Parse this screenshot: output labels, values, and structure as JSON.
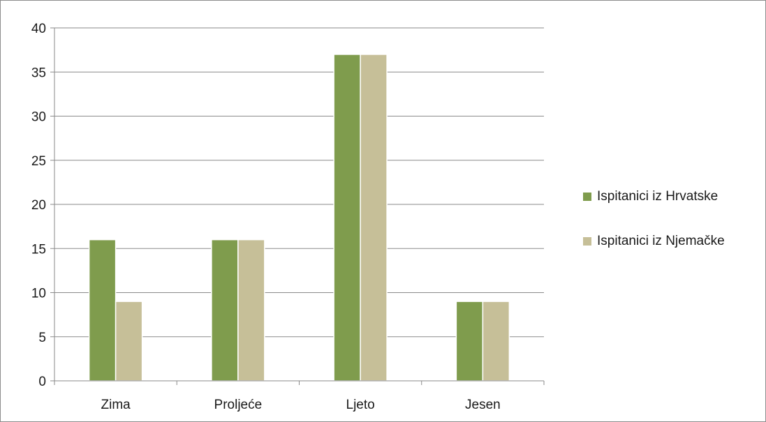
{
  "chart_data": {
    "type": "bar",
    "categories": [
      "Zima",
      "Proljeće",
      "Ljeto",
      "Jesen"
    ],
    "series": [
      {
        "name": "Ispitanici iz Hrvatske",
        "values": [
          16,
          16,
          37,
          9
        ],
        "color": "#7f9c4d"
      },
      {
        "name": "Ispitanici iz Njemačke",
        "values": [
          9,
          16,
          37,
          9
        ],
        "color": "#c6bf98"
      }
    ],
    "title": "",
    "xlabel": "",
    "ylabel": "",
    "ylim": [
      0,
      40
    ],
    "yticks": [
      "0",
      "5",
      "10",
      "15",
      "20",
      "25",
      "30",
      "35",
      "40"
    ],
    "grid": true,
    "legend_position": "right"
  }
}
